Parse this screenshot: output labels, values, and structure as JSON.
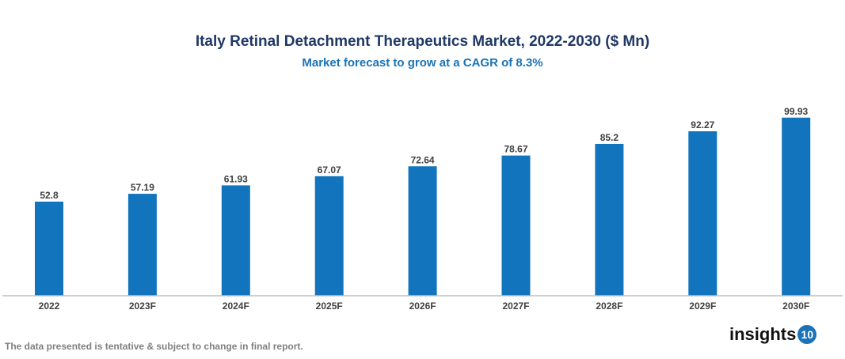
{
  "chart_data": {
    "type": "bar",
    "title": "Italy Retinal Detachment Therapeutics Market, 2022-2030 ($ Mn)",
    "subtitle": "Market forecast to grow at a CAGR of 8.3%",
    "categories": [
      "2022",
      "2023F",
      "2024F",
      "2025F",
      "2026F",
      "2027F",
      "2028F",
      "2029F",
      "2030F"
    ],
    "values": [
      52.8,
      57.19,
      61.93,
      67.07,
      72.64,
      78.67,
      85.2,
      92.27,
      99.93
    ],
    "labels": [
      "52.8",
      "57.19",
      "61.93",
      "67.07",
      "72.64",
      "78.67",
      "85.2",
      "92.27",
      "99.93"
    ],
    "xlabel": "",
    "ylabel": "",
    "ylim": [
      0,
      100
    ],
    "grid": false,
    "bar_color": "#1174bd"
  },
  "footer": "The data presented is tentative & subject to change in final report.",
  "logo": {
    "text": "insights",
    "badge": "10"
  }
}
